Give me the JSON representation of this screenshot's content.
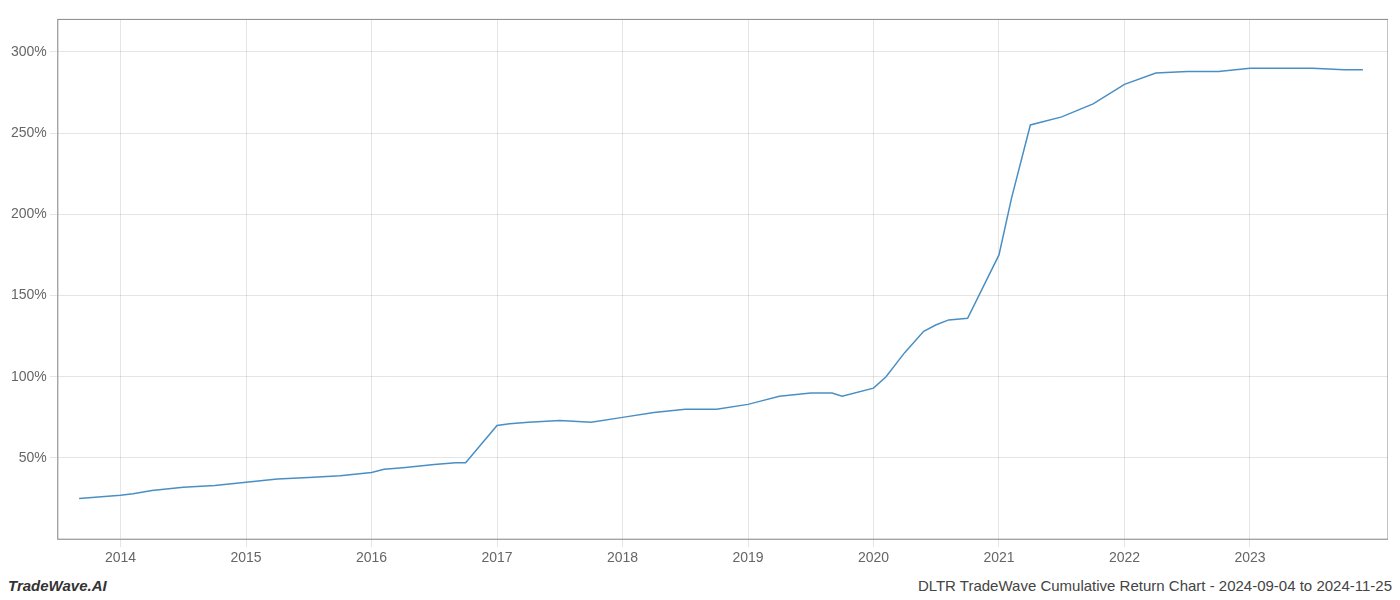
{
  "chart_data": {
    "type": "line",
    "title": "DLTR TradeWave Cumulative Return Chart - 2024-09-04 to 2024-11-25",
    "annotations": [
      "TradeWave.AI"
    ],
    "x": [
      2013.67,
      2014.0,
      2014.1,
      2014.25,
      2014.5,
      2014.75,
      2015.0,
      2015.25,
      2015.5,
      2015.75,
      2016.0,
      2016.1,
      2016.25,
      2016.5,
      2016.67,
      2016.75,
      2017.0,
      2017.1,
      2017.25,
      2017.5,
      2017.75,
      2018.0,
      2018.25,
      2018.5,
      2018.75,
      2019.0,
      2019.1,
      2019.25,
      2019.5,
      2019.67,
      2019.75,
      2020.0,
      2020.1,
      2020.25,
      2020.4,
      2020.5,
      2020.6,
      2020.75,
      2021.0,
      2021.1,
      2021.25,
      2021.5,
      2021.75,
      2022.0,
      2022.25,
      2022.5,
      2022.75,
      2023.0,
      2023.25,
      2023.5,
      2023.75,
      2023.9
    ],
    "values": [
      25,
      27,
      28,
      30,
      32,
      33,
      35,
      37,
      38,
      39,
      41,
      43,
      44,
      46,
      47,
      47,
      70,
      71,
      72,
      73,
      72,
      75,
      78,
      80,
      80,
      83,
      85,
      88,
      90,
      90,
      88,
      93,
      100,
      115,
      128,
      132,
      135,
      136,
      175,
      210,
      255,
      260,
      268,
      280,
      287,
      288,
      288,
      290,
      290,
      290,
      289,
      289
    ],
    "color": "#4a8fc4",
    "xlim": [
      2013.5,
      2024.1
    ],
    "ylim": [
      0,
      320
    ],
    "xticks": [
      2014,
      2015,
      2016,
      2017,
      2018,
      2019,
      2020,
      2021,
      2022,
      2023
    ],
    "yticks": [
      {
        "value": 50,
        "label": "50%"
      },
      {
        "value": 100,
        "label": "100%"
      },
      {
        "value": 150,
        "label": "150%"
      },
      {
        "value": 200,
        "label": "200%"
      },
      {
        "value": 250,
        "label": "250%"
      },
      {
        "value": 300,
        "label": "300%"
      }
    ],
    "grid": true
  }
}
